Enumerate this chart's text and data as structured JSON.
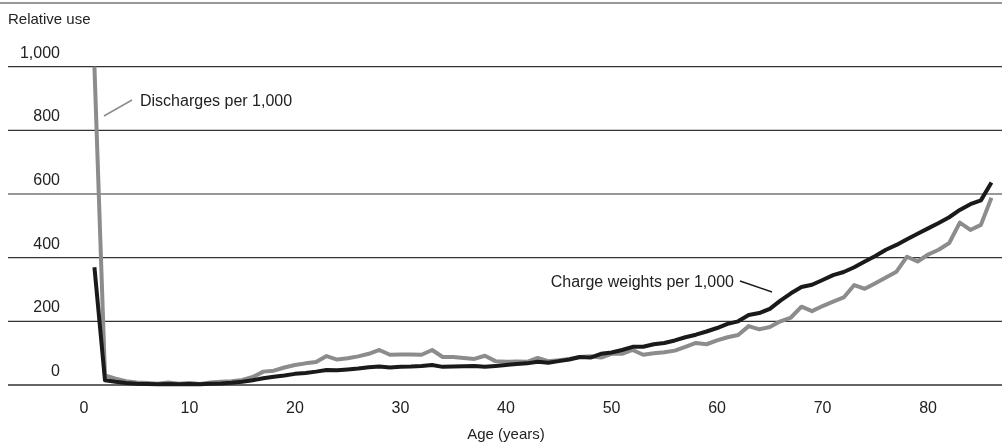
{
  "chart_data": {
    "type": "line",
    "ylabel": "Relative use",
    "xlabel": "Age (years)",
    "x": [
      1,
      2,
      3,
      4,
      5,
      6,
      7,
      8,
      9,
      10,
      11,
      12,
      13,
      14,
      15,
      16,
      17,
      18,
      19,
      20,
      21,
      22,
      23,
      24,
      25,
      26,
      27,
      28,
      29,
      30,
      31,
      32,
      33,
      34,
      35,
      36,
      37,
      38,
      39,
      40,
      41,
      42,
      43,
      44,
      45,
      46,
      47,
      48,
      49,
      50,
      51,
      52,
      53,
      54,
      55,
      56,
      57,
      58,
      59,
      60,
      61,
      62,
      63,
      64,
      65,
      66,
      67,
      68,
      69,
      70,
      71,
      72,
      73,
      74,
      75,
      76,
      77,
      78,
      79,
      80,
      81,
      82,
      83,
      84,
      85,
      86
    ],
    "series": [
      {
        "name": "Discharges per 1,000",
        "color": "#8c8c8c",
        "values": [
          1000,
          30,
          20,
          12,
          8,
          6,
          4,
          8,
          4,
          6,
          3,
          8,
          10,
          12,
          16,
          25,
          42,
          45,
          55,
          63,
          68,
          72,
          91,
          80,
          84,
          90,
          98,
          110,
          95,
          96,
          96,
          95,
          110,
          88,
          88,
          85,
          82,
          92,
          75,
          73,
          74,
          73,
          85,
          75,
          78,
          82,
          88,
          90,
          86,
          98,
          98,
          110,
          95,
          100,
          103,
          108,
          120,
          132,
          128,
          140,
          150,
          157,
          185,
          175,
          182,
          200,
          212,
          246,
          232,
          248,
          262,
          275,
          314,
          302,
          320,
          338,
          356,
          403,
          388,
          410,
          425,
          446,
          510,
          487,
          503,
          588
        ]
      },
      {
        "name": "Charge weights per 1,000",
        "color": "#1a1a1a",
        "values": [
          370,
          15,
          10,
          6,
          4,
          3,
          2,
          3,
          2,
          3,
          2,
          4,
          5,
          7,
          10,
          15,
          21,
          26,
          30,
          35,
          38,
          42,
          47,
          46,
          49,
          52,
          56,
          58,
          55,
          57,
          58,
          60,
          63,
          57,
          58,
          59,
          60,
          57,
          60,
          63,
          66,
          68,
          73,
          70,
          75,
          80,
          88,
          86,
          98,
          102,
          110,
          120,
          120,
          128,
          132,
          140,
          150,
          158,
          168,
          179,
          192,
          200,
          220,
          226,
          239,
          265,
          288,
          308,
          315,
          330,
          345,
          355,
          370,
          388,
          405,
          425,
          440,
          458,
          475,
          492,
          509,
          527,
          550,
          568,
          580,
          636
        ]
      }
    ],
    "xlim": [
      -7,
      87
    ],
    "xticks": [
      0,
      10,
      20,
      30,
      40,
      50,
      60,
      70,
      80
    ],
    "ylim": [
      0,
      1200
    ],
    "yticks": [
      0,
      {
        "value": 200,
        "label": "200"
      },
      {
        "value": 400,
        "label": "400"
      },
      {
        "value": 600,
        "label": "600"
      },
      {
        "value": 800,
        "label": "800"
      },
      {
        "value": 1000,
        "label": "1,000"
      }
    ],
    "grid": "y",
    "line_style": "solid",
    "marker": "none"
  }
}
